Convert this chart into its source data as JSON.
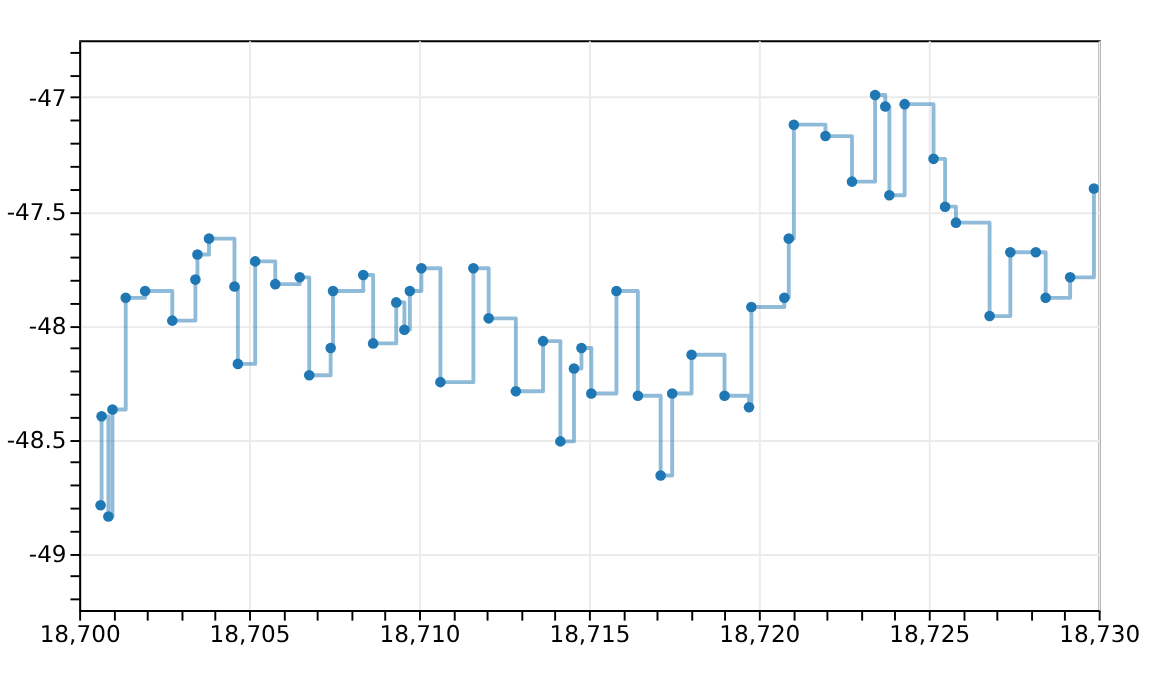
{
  "chart_data": {
    "type": "step",
    "marker": "circle",
    "grid": true,
    "line_style": "solid",
    "xlim": [
      18700,
      18730
    ],
    "ylim": [
      -49.25,
      -46.75
    ],
    "xticks": [
      {
        "value": 18700,
        "label": "18,700"
      },
      {
        "value": 18701,
        "label": null
      },
      {
        "value": 18702,
        "label": null
      },
      {
        "value": 18703,
        "label": null
      },
      {
        "value": 18704,
        "label": null
      },
      {
        "value": 18705,
        "label": "18,705"
      },
      {
        "value": 18706,
        "label": null
      },
      {
        "value": 18707,
        "label": null
      },
      {
        "value": 18708,
        "label": null
      },
      {
        "value": 18709,
        "label": null
      },
      {
        "value": 18710,
        "label": "18,710"
      },
      {
        "value": 18711,
        "label": null
      },
      {
        "value": 18712,
        "label": null
      },
      {
        "value": 18713,
        "label": null
      },
      {
        "value": 18714,
        "label": null
      },
      {
        "value": 18715,
        "label": "18,715"
      },
      {
        "value": 18716,
        "label": null
      },
      {
        "value": 18717,
        "label": null
      },
      {
        "value": 18718,
        "label": null
      },
      {
        "value": 18719,
        "label": null
      },
      {
        "value": 18720,
        "label": "18,720"
      },
      {
        "value": 18721,
        "label": null
      },
      {
        "value": 18722,
        "label": null
      },
      {
        "value": 18723,
        "label": null
      },
      {
        "value": 18724,
        "label": null
      },
      {
        "value": 18725,
        "label": "18,725"
      },
      {
        "value": 18726,
        "label": null
      },
      {
        "value": 18727,
        "label": null
      },
      {
        "value": 18728,
        "label": null
      },
      {
        "value": 18729,
        "label": null
      },
      {
        "value": 18730,
        "label": "18,730"
      }
    ],
    "yticks": [
      {
        "value": -49.2,
        "label": null
      },
      {
        "value": -49.1,
        "label": null
      },
      -49,
      {
        "value": -48.9,
        "label": null
      },
      {
        "value": -48.8,
        "label": null
      },
      {
        "value": -48.7,
        "label": null
      },
      {
        "value": -48.6,
        "label": null
      },
      -48.5,
      {
        "value": -48.4,
        "label": null
      },
      {
        "value": -48.3,
        "label": null
      },
      {
        "value": -48.2,
        "label": null
      },
      {
        "value": -48.1,
        "label": null
      },
      -48,
      {
        "value": -47.9,
        "label": null
      },
      {
        "value": -47.8,
        "label": null
      },
      {
        "value": -47.7,
        "label": null
      },
      {
        "value": -47.6,
        "label": null
      },
      -47.5,
      {
        "value": -47.4,
        "label": null
      },
      {
        "value": -47.3,
        "label": null
      },
      {
        "value": -47.2,
        "label": null
      },
      {
        "value": -47.1,
        "label": null
      },
      -47,
      {
        "value": -46.9,
        "label": null
      },
      {
        "value": -46.8,
        "label": null
      }
    ],
    "series": [
      {
        "color": "#1f77b4",
        "x": [
          18700.63,
          18700.66,
          18700.86,
          18700.98,
          18701.37,
          18701.94,
          18702.74,
          18703.42,
          18703.48,
          18703.82,
          18704.57,
          18704.67,
          18705.18,
          18705.77,
          18706.49,
          18706.77,
          18707.4,
          18707.47,
          18708.36,
          18708.65,
          18709.33,
          18709.57,
          18709.73,
          18710.07,
          18710.63,
          18711.6,
          18712.05,
          18712.85,
          18713.65,
          18714.16,
          18714.56,
          18714.78,
          18715.07,
          18715.81,
          18716.44,
          18717.11,
          18717.45,
          18718.02,
          18718.99,
          18719.71,
          18719.78,
          18720.75,
          18720.88,
          18721.03,
          18721.96,
          18722.74,
          18723.42,
          18723.72,
          18723.84,
          18724.29,
          18725.14,
          18725.48,
          18725.8,
          18726.79,
          18727.4,
          18728.15,
          18728.44,
          18729.16,
          18729.86
        ],
        "values": [
          -48.79,
          -48.4,
          -48.84,
          -48.37,
          -47.88,
          -47.85,
          -47.98,
          -47.8,
          -47.69,
          -47.62,
          -47.83,
          -48.17,
          -47.72,
          -47.82,
          -47.79,
          -48.22,
          -48.1,
          -47.85,
          -47.78,
          -48.08,
          -47.9,
          -48.02,
          -47.85,
          -47.75,
          -48.25,
          -47.75,
          -47.97,
          -48.29,
          -48.07,
          -48.51,
          -48.19,
          -48.1,
          -48.3,
          -47.85,
          -48.31,
          -48.66,
          -48.3,
          -48.13,
          -48.31,
          -48.36,
          -47.92,
          -47.88,
          -47.62,
          -47.12,
          -47.17,
          -47.37,
          -46.99,
          -47.04,
          -47.43,
          -47.03,
          -47.27,
          -47.48,
          -47.55,
          -47.96,
          -47.68,
          -47.68,
          -47.88,
          -47.79,
          -47.4
        ]
      }
    ]
  }
}
